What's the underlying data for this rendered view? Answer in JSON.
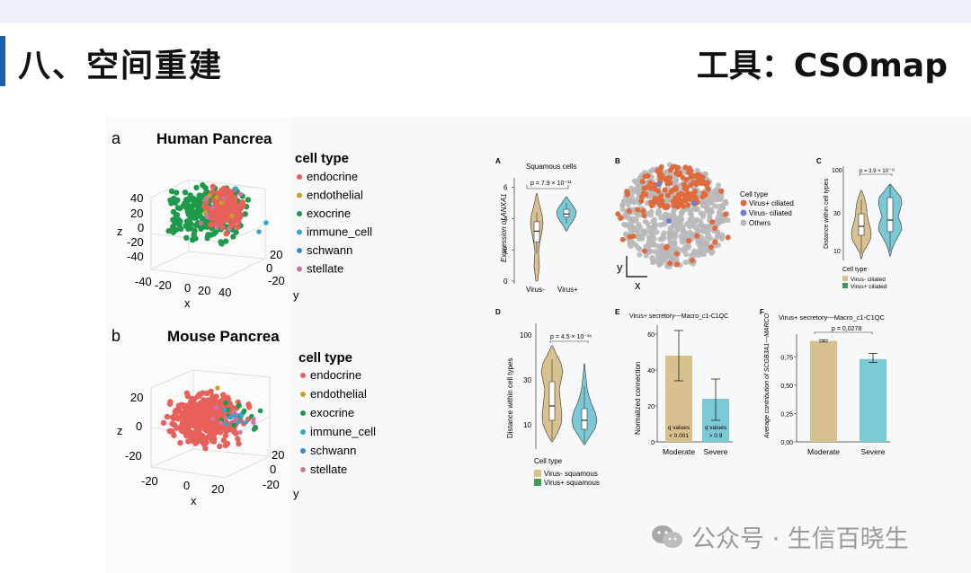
{
  "slide": {
    "title_left": "八、空间重建",
    "title_right": "工具：CSOmap"
  },
  "watermark": {
    "text": "公众号 · 生信百晓生"
  },
  "chart_data": [
    {
      "type": "scatter",
      "panel": "a",
      "title": "Human Pancrea",
      "legend_title": "cell type",
      "legend": [
        {
          "name": "endocrine",
          "color": "#e8605a"
        },
        {
          "name": "endothelial",
          "color": "#c7a227"
        },
        {
          "name": "exocrine",
          "color": "#1f9a4c"
        },
        {
          "name": "immune_cell",
          "color": "#2ea6d6"
        },
        {
          "name": "schwann",
          "color": "#3a89c9"
        },
        {
          "name": "stellate",
          "color": "#c978a6"
        }
      ],
      "axes": {
        "x": {
          "label": "x",
          "ticks": [
            "-40",
            "-20",
            "0",
            "20",
            "40"
          ]
        },
        "y": {
          "label": "y",
          "ticks": [
            "-20",
            "0",
            "20"
          ]
        },
        "z": {
          "label": "z",
          "ticks": [
            "40",
            "20",
            "0",
            "-20",
            "-40"
          ]
        }
      }
    },
    {
      "type": "scatter",
      "panel": "b",
      "title": "Mouse Pancrea",
      "legend_title": "cell type",
      "legend": [
        {
          "name": "endocrine",
          "color": "#e8605a"
        },
        {
          "name": "endothelial",
          "color": "#c7a227"
        },
        {
          "name": "exocrine",
          "color": "#1f9a4c"
        },
        {
          "name": "immune_cell",
          "color": "#2ea6d6"
        },
        {
          "name": "schwann",
          "color": "#3a89c9"
        },
        {
          "name": "stellate",
          "color": "#c978a6"
        }
      ],
      "axes": {
        "x": {
          "label": "x",
          "ticks": [
            "-20",
            "0",
            "20"
          ]
        },
        "y": {
          "label": "y",
          "ticks": [
            "-20",
            "0",
            "20"
          ]
        },
        "z": {
          "label": "z",
          "ticks": [
            "20",
            "0",
            "-20"
          ]
        }
      }
    },
    {
      "type": "violin",
      "panel": "A",
      "title": "Squamous cells",
      "ylabel": "Expression of ANXA1",
      "categories": [
        "Virus-",
        "Virus+"
      ],
      "colors": [
        "#d9c08f",
        "#7cc9d6"
      ],
      "yticks": [
        "0",
        "2",
        "4",
        "6"
      ],
      "ylim": [
        0,
        6.5
      ],
      "medians": [
        3.2,
        4.3
      ],
      "pvalue": "p = 7.9 × 10⁻¹¹"
    },
    {
      "type": "scatter",
      "panel": "B",
      "legend_title": "Cell type",
      "legend": [
        {
          "name": "Virus+ ciliated",
          "color": "#e06a3b"
        },
        {
          "name": "Virus- ciliated",
          "color": "#6f7fd0"
        },
        {
          "name": "Others",
          "color": "#b8b8b8"
        }
      ],
      "axes": {
        "x": {
          "label": "x"
        },
        "y": {
          "label": "y"
        }
      }
    },
    {
      "type": "violin",
      "panel": "C",
      "ylabel": "Distance within cell types",
      "yticks": [
        "100",
        "30",
        "10"
      ],
      "pvalue": "p = 3.9 × 10⁻¹¹",
      "legend_title": "Cell type",
      "legend": [
        {
          "name": "Virus- ciliated",
          "color": "#d9c08f"
        },
        {
          "name": "Virus+ ciliated",
          "color": "#3f9a55"
        }
      ]
    },
    {
      "type": "violin",
      "panel": "D",
      "ylabel": "Distance within cell types",
      "yticks": [
        "100",
        "30",
        "10"
      ],
      "pvalue": "p = 4.5 × 10⁻¹⁶",
      "legend_title": "Cell type",
      "legend": [
        {
          "name": "Virus- squamous",
          "color": "#d9c08f"
        },
        {
          "name": "Virus+ squamous",
          "color": "#3f9a55"
        }
      ]
    },
    {
      "type": "bar",
      "panel": "E",
      "title": "Virus+ secretory---Macro_c1-C1QC",
      "ylabel": "Normalized connection",
      "categories": [
        "Moderate",
        "Severe"
      ],
      "values": [
        48,
        24
      ],
      "errors": [
        [
          34,
          62
        ],
        [
          12,
          35
        ]
      ],
      "colors": [
        "#d9c08f",
        "#7cc9d6"
      ],
      "ylim": [
        0,
        65
      ],
      "yticks": [
        0,
        20,
        40,
        60
      ],
      "bar_labels": [
        "q values\n< 0.001",
        "q values\n> 0.9"
      ]
    },
    {
      "type": "bar",
      "panel": "F",
      "title": "Virus+ secretory---Macro_c1-C1QC",
      "ylabel": "Average contribution of SCGB3A1---MARCO",
      "categories": [
        "Moderate",
        "Severe"
      ],
      "values": [
        0.89,
        0.73
      ],
      "errors": [
        [
          0.88,
          0.9
        ],
        [
          0.7,
          0.78
        ]
      ],
      "colors": [
        "#d9c08f",
        "#7cc9d6"
      ],
      "ylim": [
        0,
        0.95
      ],
      "yticks": [
        "0,00",
        "0,25",
        "0,50",
        "0,75"
      ],
      "pvalue": "p = 0,0278"
    }
  ]
}
